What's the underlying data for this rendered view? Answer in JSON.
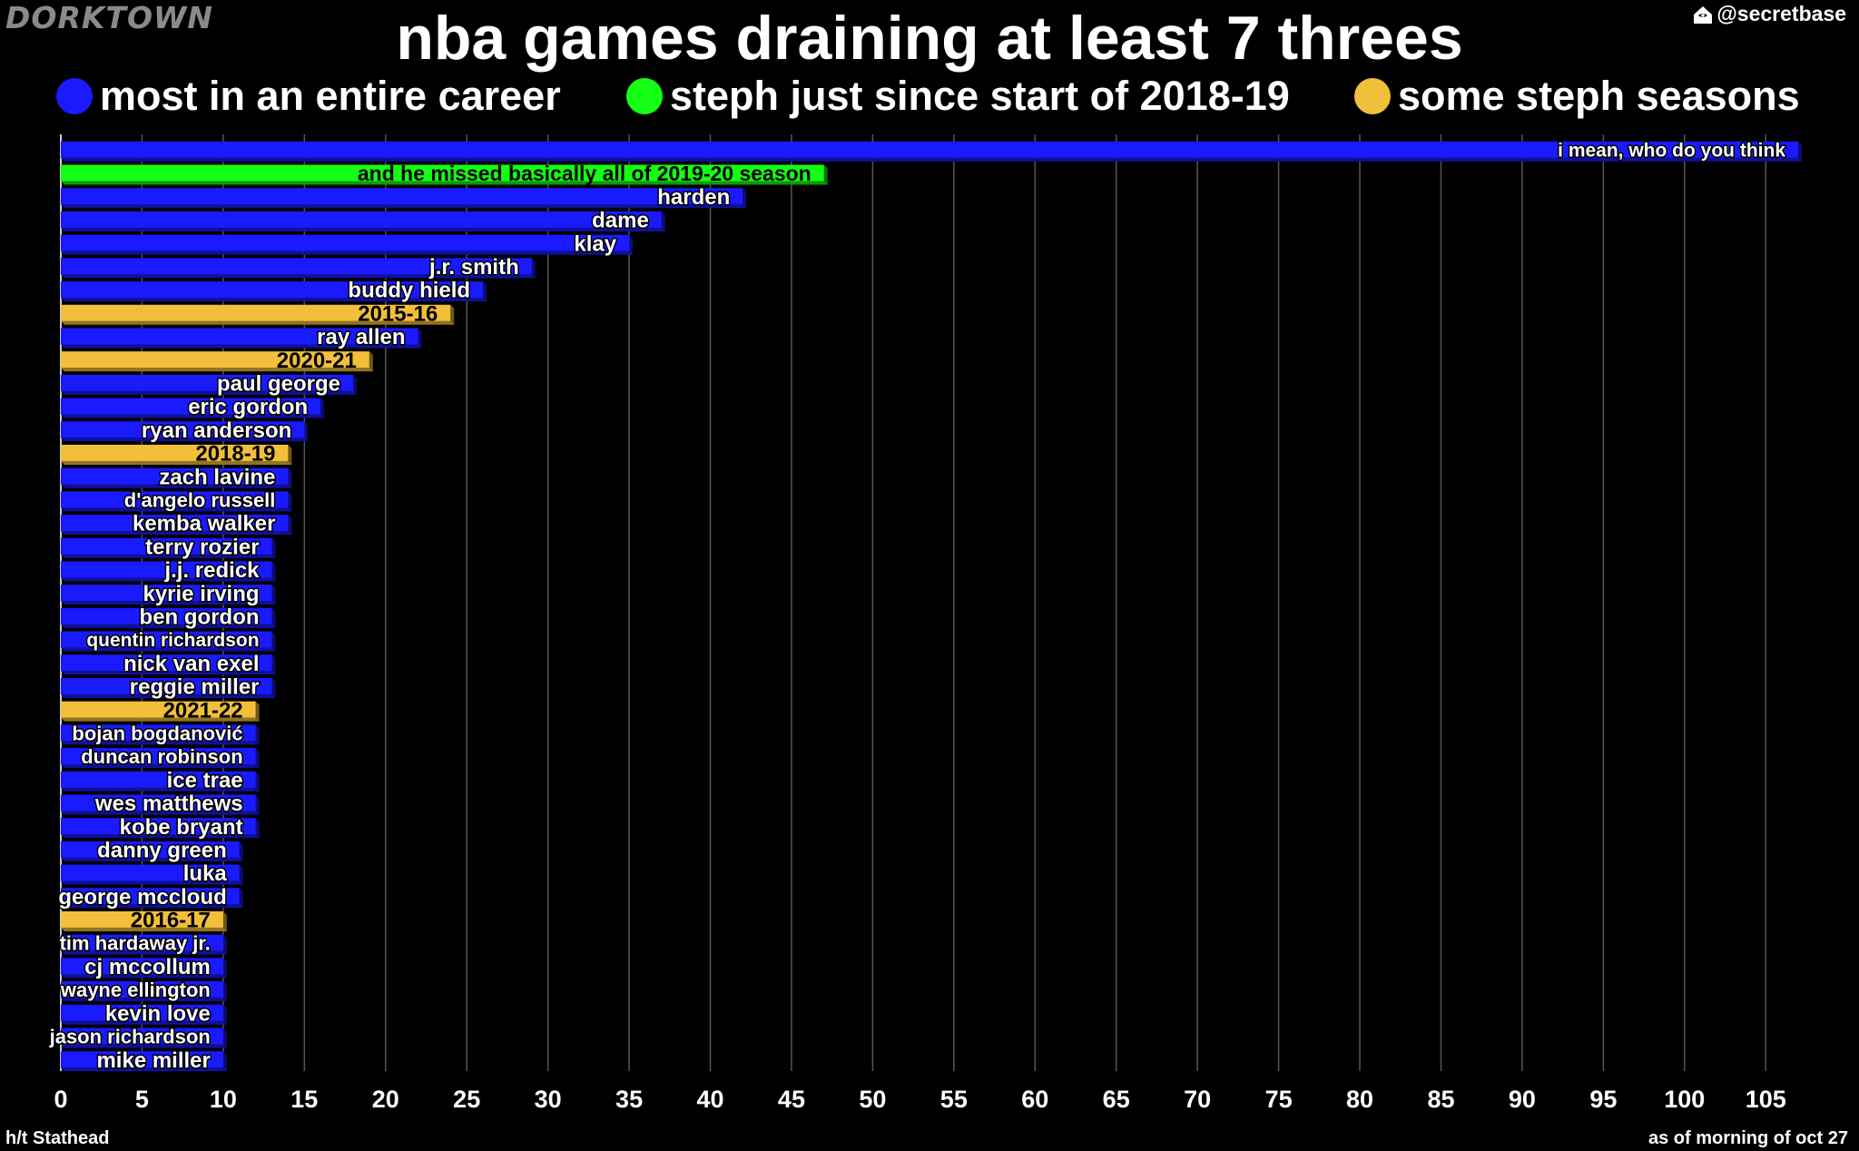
{
  "brand": "DORKTOWN",
  "handle": "@secretbase",
  "handle_icon": "house-icon",
  "footer": {
    "left": "h/t Stathead",
    "right": "as of morning of oct 27"
  },
  "colors": {
    "career": "#1a1aff",
    "steph_recent": "#14ff14",
    "steph_season": "#f2bf3a",
    "background": "#000000",
    "grid": "#555555"
  },
  "chart_data": {
    "type": "bar",
    "orientation": "horizontal",
    "title": "nba games draining at least 7 threes",
    "legend": [
      {
        "key": "career",
        "label": "most in an entire career"
      },
      {
        "key": "steph_recent",
        "label": "steph just since start of 2018-19"
      },
      {
        "key": "steph_season",
        "label": "some steph seasons"
      }
    ],
    "legend_placement": "top",
    "grid": true,
    "xlim": [
      0,
      107
    ],
    "xticks": [
      0,
      5,
      10,
      15,
      20,
      25,
      30,
      35,
      40,
      45,
      50,
      55,
      60,
      65,
      70,
      75,
      80,
      85,
      90,
      95,
      100,
      105
    ],
    "bars": [
      {
        "label": "i mean, who do you think",
        "value": 107,
        "group": "career"
      },
      {
        "label": "and he missed basically all of 2019-20 season",
        "value": 47,
        "group": "steph_recent"
      },
      {
        "label": "harden",
        "value": 42,
        "group": "career"
      },
      {
        "label": "dame",
        "value": 37,
        "group": "career"
      },
      {
        "label": "klay",
        "value": 35,
        "group": "career"
      },
      {
        "label": "j.r. smith",
        "value": 29,
        "group": "career"
      },
      {
        "label": "buddy hield",
        "value": 26,
        "group": "career"
      },
      {
        "label": "2015-16",
        "value": 24,
        "group": "steph_season"
      },
      {
        "label": "ray allen",
        "value": 22,
        "group": "career"
      },
      {
        "label": "2020-21",
        "value": 19,
        "group": "steph_season"
      },
      {
        "label": "paul george",
        "value": 18,
        "group": "career"
      },
      {
        "label": "eric gordon",
        "value": 16,
        "group": "career"
      },
      {
        "label": "ryan anderson",
        "value": 15,
        "group": "career"
      },
      {
        "label": "2018-19",
        "value": 14,
        "group": "steph_season"
      },
      {
        "label": "zach lavine",
        "value": 14,
        "group": "career"
      },
      {
        "label": "d'angelo russell",
        "value": 14,
        "group": "career"
      },
      {
        "label": "kemba walker",
        "value": 14,
        "group": "career"
      },
      {
        "label": "terry rozier",
        "value": 13,
        "group": "career"
      },
      {
        "label": "j.j. redick",
        "value": 13,
        "group": "career"
      },
      {
        "label": "kyrie irving",
        "value": 13,
        "group": "career"
      },
      {
        "label": "ben gordon",
        "value": 13,
        "group": "career"
      },
      {
        "label": "quentin richardson",
        "value": 13,
        "group": "career"
      },
      {
        "label": "nick van exel",
        "value": 13,
        "group": "career"
      },
      {
        "label": "reggie miller",
        "value": 13,
        "group": "career"
      },
      {
        "label": "2021-22",
        "value": 12,
        "group": "steph_season"
      },
      {
        "label": "bojan bogdanović",
        "value": 12,
        "group": "career"
      },
      {
        "label": "duncan robinson",
        "value": 12,
        "group": "career"
      },
      {
        "label": "ice trae",
        "value": 12,
        "group": "career"
      },
      {
        "label": "wes matthews",
        "value": 12,
        "group": "career"
      },
      {
        "label": "kobe bryant",
        "value": 12,
        "group": "career"
      },
      {
        "label": "danny green",
        "value": 11,
        "group": "career"
      },
      {
        "label": "luka",
        "value": 11,
        "group": "career"
      },
      {
        "label": "george mccloud",
        "value": 11,
        "group": "career"
      },
      {
        "label": "2016-17",
        "value": 10,
        "group": "steph_season"
      },
      {
        "label": "tim hardaway jr.",
        "value": 10,
        "group": "career"
      },
      {
        "label": "cj mccollum",
        "value": 10,
        "group": "career"
      },
      {
        "label": "wayne ellington",
        "value": 10,
        "group": "career"
      },
      {
        "label": "kevin love",
        "value": 10,
        "group": "career"
      },
      {
        "label": "jason richardson",
        "value": 10,
        "group": "career"
      },
      {
        "label": "mike miller",
        "value": 10,
        "group": "career"
      }
    ]
  }
}
